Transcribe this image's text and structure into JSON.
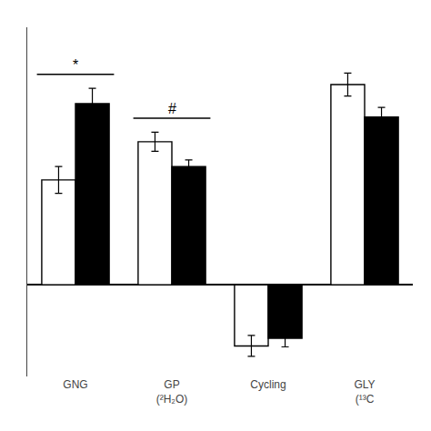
{
  "chart_data": {
    "type": "bar",
    "categories": [
      "GNG",
      "GP\n(²H₂O)",
      "Cycling",
      "GLY\n(¹³C"
    ],
    "series": [
      {
        "color": "#ffffff",
        "values": [
          5.5,
          7.5,
          -3.2,
          10.5
        ],
        "errors": [
          0.7,
          0.5,
          0.55,
          0.6
        ]
      },
      {
        "color": "#000000",
        "values": [
          9.5,
          6.2,
          -2.8,
          8.8
        ],
        "errors": [
          0.8,
          0.35,
          0.45,
          0.5
        ]
      }
    ],
    "ylim": [
      -4.8,
      13.5
    ],
    "grid": false,
    "tick_labels": "x",
    "annotations": [
      {
        "category": "GNG",
        "text": "*"
      },
      {
        "category": "GP\n(²H₂O)",
        "text": "#"
      }
    ]
  }
}
